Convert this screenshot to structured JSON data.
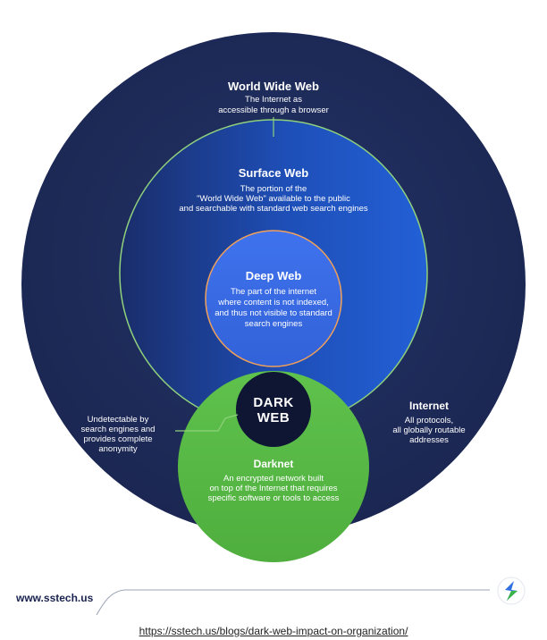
{
  "colors": {
    "internet": "#1f2d5a",
    "surface_web": "#1c50b8",
    "deep_web": "#3d6fe8",
    "darknet": "#58b947",
    "dark_web": "#0e1634",
    "accent_line": "#8fd17d",
    "deep_stroke": "#f0a05a"
  },
  "diagram": {
    "world_wide_web": {
      "title": "World Wide Web",
      "desc": [
        "The Internet as",
        "accessible through a browser"
      ]
    },
    "surface_web": {
      "title": "Surface Web",
      "desc": [
        "The portion of the",
        "\"World Wide Web\" available to the public",
        "and searchable with standard web search engines"
      ]
    },
    "deep_web": {
      "title": "Deep Web",
      "desc": [
        "The part of the internet",
        "where content is not indexed,",
        "and thus not visible to standard",
        "search engines"
      ]
    },
    "dark_web": {
      "title": [
        "DARK",
        "WEB"
      ]
    },
    "darknet": {
      "title": "Darknet",
      "desc": [
        "An encrypted network built",
        "on top of the Internet that requires",
        "specific software or tools to access"
      ]
    },
    "internet": {
      "title": "Internet",
      "desc": [
        "All protocols,",
        "all globally routable",
        "addresses"
      ]
    },
    "dark_web_note": {
      "desc": [
        "Undetectable by",
        "search engines and",
        "provides complete",
        "anonymity"
      ]
    }
  },
  "footer": {
    "site": "www.sstech.us",
    "logo_icon": "sstech-s-logo-icon"
  },
  "source": {
    "url": "https://sstech.us/blogs/dark-web-impact-on-organization/"
  }
}
